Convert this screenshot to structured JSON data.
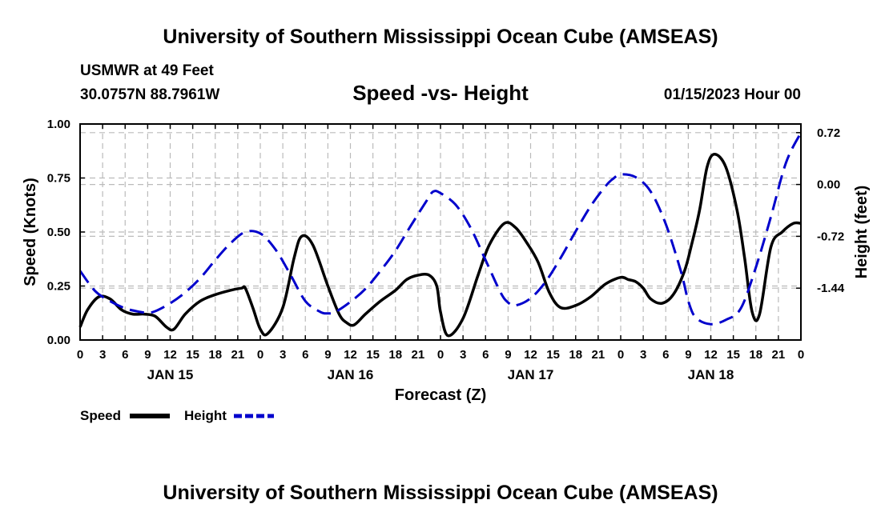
{
  "header": {
    "title": "University of Southern Mississippi Ocean Cube (AMSEAS)",
    "station": "USMWR at 49 Feet",
    "coords": "30.0757N  88.7961W",
    "plot_title": "Speed -vs- Height",
    "date": "01/15/2023 Hour 00"
  },
  "footer": {
    "title": "University of Southern Mississippi Ocean Cube (AMSEAS)"
  },
  "legend": {
    "speed_label": "Speed",
    "height_label": "Height"
  },
  "colors": {
    "speed": "#000000",
    "height": "#0000cc",
    "grid": "#bbbbbb"
  },
  "chart_data": {
    "type": "line",
    "title": "Speed -vs- Height",
    "xlabel": "Forecast (Z)",
    "ylabel": "Speed (Knots)",
    "y2label": "Height (feet)",
    "xlim": [
      0,
      96
    ],
    "ylim": [
      0,
      1
    ],
    "y2lim": [
      -2.16,
      0.84
    ],
    "x_ticks": [
      0,
      3,
      6,
      9,
      12,
      15,
      18,
      21,
      24,
      27,
      30,
      33,
      36,
      39,
      42,
      45,
      48,
      51,
      54,
      57,
      60,
      63,
      66,
      69,
      72,
      75,
      78,
      81,
      84,
      87,
      90,
      93,
      96
    ],
    "x_tick_labels": [
      "0",
      "3",
      "6",
      "9",
      "12",
      "15",
      "18",
      "21",
      "0",
      "3",
      "6",
      "9",
      "12",
      "15",
      "18",
      "21",
      "0",
      "3",
      "6",
      "9",
      "12",
      "15",
      "18",
      "21",
      "0",
      "3",
      "6",
      "9",
      "12",
      "15",
      "18",
      "21",
      "0"
    ],
    "day_labels": [
      {
        "x": 12,
        "label": "JAN 15"
      },
      {
        "x": 36,
        "label": "JAN 16"
      },
      {
        "x": 60,
        "label": "JAN 17"
      },
      {
        "x": 84,
        "label": "JAN 18"
      }
    ],
    "y_ticks": [
      0,
      0.25,
      0.5,
      0.75,
      1.0
    ],
    "y_tick_labels": [
      "0.00",
      "0.25",
      "0.50",
      "0.75",
      "1.00"
    ],
    "y2_ticks": [
      -1.44,
      -0.72,
      0.0,
      0.72
    ],
    "y2_tick_labels": [
      "-1.44",
      "-0.72",
      "0.00",
      "0.72"
    ],
    "series": [
      {
        "name": "Speed",
        "axis": "left",
        "x": [
          0,
          1,
          2.5,
          4,
          5.5,
          7,
          8.5,
          10,
          11.5,
          12.5,
          14,
          16,
          18,
          20,
          21.5,
          22,
          23,
          24,
          25,
          27,
          28.5,
          29.5,
          31,
          33,
          34.5,
          35.5,
          36.5,
          38,
          40,
          42,
          43.5,
          45,
          46.5,
          47.5,
          48,
          49,
          51,
          53,
          54.5,
          56.5,
          58,
          59.5,
          61,
          62.5,
          64,
          66,
          68,
          70,
          72,
          73,
          74,
          75,
          76,
          77.5,
          79,
          80.5,
          81.5,
          82.5,
          83.5,
          84.5,
          86,
          87.5,
          88.5,
          89.5,
          90.5,
          92,
          93.5,
          95,
          96
        ],
        "values": [
          0.06,
          0.14,
          0.2,
          0.19,
          0.14,
          0.12,
          0.12,
          0.11,
          0.06,
          0.05,
          0.12,
          0.18,
          0.21,
          0.23,
          0.24,
          0.24,
          0.15,
          0.05,
          0.03,
          0.15,
          0.38,
          0.48,
          0.44,
          0.25,
          0.12,
          0.08,
          0.07,
          0.12,
          0.18,
          0.23,
          0.28,
          0.3,
          0.3,
          0.25,
          0.13,
          0.02,
          0.1,
          0.3,
          0.44,
          0.54,
          0.52,
          0.45,
          0.36,
          0.22,
          0.15,
          0.16,
          0.2,
          0.26,
          0.29,
          0.28,
          0.27,
          0.24,
          0.19,
          0.17,
          0.21,
          0.32,
          0.45,
          0.6,
          0.8,
          0.86,
          0.8,
          0.6,
          0.38,
          0.13,
          0.12,
          0.43,
          0.5,
          0.54,
          0.54
        ]
      },
      {
        "name": "Height",
        "axis": "right",
        "x": [
          0,
          2,
          4,
          6,
          8,
          9,
          10,
          12,
          14,
          16,
          18,
          20,
          22,
          24,
          26,
          28,
          30,
          32,
          33,
          34,
          36,
          38,
          40,
          42,
          44,
          46,
          47,
          48,
          50,
          52,
          54,
          56,
          57,
          58,
          60,
          62,
          64,
          66,
          68,
          70,
          71,
          72,
          74,
          76,
          78,
          80,
          81,
          82,
          84,
          86,
          88,
          90,
          92,
          94,
          96
        ],
        "values": [
          -1.2,
          -1.48,
          -1.62,
          -1.72,
          -1.77,
          -1.78,
          -1.76,
          -1.65,
          -1.5,
          -1.3,
          -1.05,
          -0.82,
          -0.66,
          -0.68,
          -0.9,
          -1.25,
          -1.62,
          -1.77,
          -1.79,
          -1.77,
          -1.63,
          -1.45,
          -1.2,
          -0.92,
          -0.58,
          -0.25,
          -0.1,
          -0.12,
          -0.28,
          -0.6,
          -1.05,
          -1.5,
          -1.64,
          -1.68,
          -1.58,
          -1.35,
          -1.02,
          -0.65,
          -0.3,
          -0.02,
          0.08,
          0.14,
          0.1,
          -0.1,
          -0.55,
          -1.2,
          -1.62,
          -1.85,
          -1.94,
          -1.88,
          -1.72,
          -1.15,
          -0.45,
          0.3,
          0.72
        ]
      }
    ]
  }
}
